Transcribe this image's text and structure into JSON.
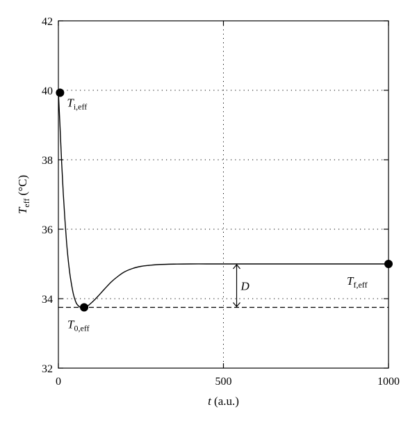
{
  "chart_data": {
    "type": "line",
    "title": "",
    "xlabel": {
      "main": "t",
      "rest": " (a.u.)"
    },
    "ylabel": {
      "main": "T",
      "sub": "eff",
      "rest": " (°C)"
    },
    "xlim": [
      0,
      1000
    ],
    "ylim": [
      32,
      42
    ],
    "xticks": [
      0,
      500,
      1000
    ],
    "xtick_labels": [
      "0",
      "500",
      "1000"
    ],
    "yticks": [
      32,
      34,
      36,
      38,
      40,
      42
    ],
    "ytick_labels": [
      "32",
      "34",
      "36",
      "38",
      "40",
      "42"
    ],
    "grid": {
      "x": [
        500
      ],
      "y": [
        34,
        36,
        38,
        40
      ],
      "style": "dotted"
    },
    "x": [
      0,
      5,
      10,
      15,
      20,
      25,
      30,
      35,
      40,
      45,
      50,
      55,
      60,
      65,
      70,
      75,
      80,
      90,
      100,
      110,
      120,
      140,
      160,
      180,
      200,
      225,
      250,
      275,
      300,
      350,
      400,
      450,
      500,
      600,
      700,
      800,
      900,
      1000
    ],
    "y": [
      39.95,
      38.95,
      37.9,
      37.0,
      36.25,
      35.6,
      35.1,
      34.7,
      34.4,
      34.15,
      33.98,
      33.86,
      33.8,
      33.76,
      33.74,
      33.74,
      33.75,
      33.8,
      33.88,
      33.97,
      34.07,
      34.28,
      34.48,
      34.64,
      34.77,
      34.87,
      34.93,
      34.96,
      34.98,
      34.995,
      35.0,
      35.0,
      35.0,
      35.0,
      35.0,
      35.0,
      35.0,
      35.0
    ],
    "baseline_y": 33.75,
    "points": [
      {
        "name": "initial",
        "x": 5,
        "y": 39.93,
        "label": {
          "main": "T",
          "sub": "i,eff"
        }
      },
      {
        "name": "minimum",
        "x": 78,
        "y": 33.75,
        "label": {
          "main": "T",
          "sub": "0,eff"
        }
      },
      {
        "name": "final",
        "x": 1000,
        "y": 35.0,
        "label": {
          "main": "T",
          "sub": "f,eff"
        }
      }
    ],
    "gap": {
      "x": 540,
      "from": 33.75,
      "to": 35.0,
      "label": "D"
    }
  }
}
